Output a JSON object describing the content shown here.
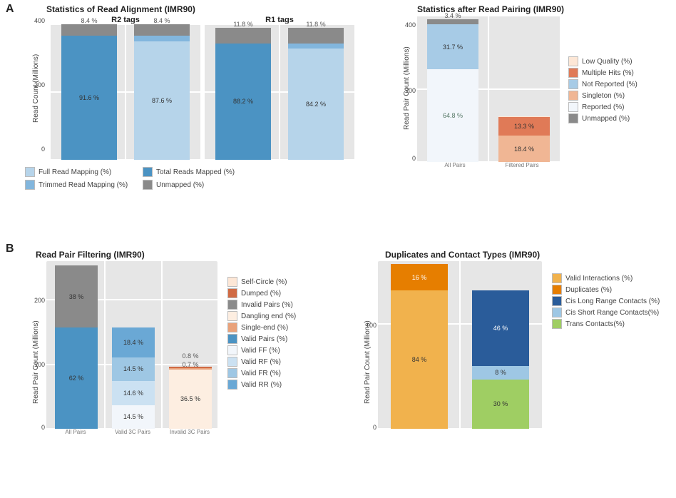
{
  "section_A_label": "A",
  "section_B_label": "B",
  "panelA1": {
    "title": "Statistics of Read Alignment  (IMR90)",
    "sub_left": "R2 tags",
    "sub_right": "R1 tags",
    "y_label": "Read Count (Millions)",
    "ymax": 400,
    "yticks": [
      0,
      200,
      400
    ],
    "bg": "#e6e6e6",
    "grid": "#ffffff",
    "left_bars": [
      {
        "total": 400,
        "segments": [
          {
            "label": "91.6 %",
            "value": 366,
            "color": "#4b93c3"
          },
          {
            "label": "8.4 %",
            "value": 34,
            "color": "#8a8a8a",
            "label_pos": "top"
          }
        ]
      },
      {
        "total": 400,
        "segments": [
          {
            "label": "87.6 %",
            "value": 350,
            "color": "#b6d4ea"
          },
          {
            "label": "4 %",
            "value": 16,
            "color": "#82b6dd",
            "label_pos": "top"
          },
          {
            "label": "8.4 %",
            "value": 34,
            "color": "#8a8a8a",
            "label_pos": "top"
          }
        ]
      }
    ],
    "right_bars": [
      {
        "total": 390,
        "segments": [
          {
            "label": "88.2 %",
            "value": 344,
            "color": "#4b93c3"
          },
          {
            "label": "11.8 %",
            "value": 46,
            "color": "#8a8a8a",
            "label_pos": "top"
          }
        ]
      },
      {
        "total": 390,
        "segments": [
          {
            "label": "84.2 %",
            "value": 328,
            "color": "#b6d4ea"
          },
          {
            "label": "4 %",
            "value": 16,
            "color": "#82b6dd",
            "label_pos": "top"
          },
          {
            "label": "11.8 %",
            "value": 46,
            "color": "#8a8a8a",
            "label_pos": "top"
          }
        ]
      }
    ],
    "legend": [
      {
        "label": "Full Read Mapping (%)",
        "color": "#b6d4ea"
      },
      {
        "label": "Total Reads Mapped (%)",
        "color": "#4b93c3"
      },
      {
        "label": "Trimmed Read Mapping (%)",
        "color": "#82b6dd"
      },
      {
        "label": "Unmapped (%)",
        "color": "#8a8a8a"
      }
    ]
  },
  "panelA2": {
    "title": "Statistics after Read Pairing (IMR90)",
    "y_label": "Read Pair Count (Millions)",
    "ymax": 400,
    "yticks": [
      0,
      200,
      400
    ],
    "bg": "#e6e6e6",
    "x_categories": [
      "All Pairs",
      "Filtered Pairs"
    ],
    "bars": [
      {
        "total": 390,
        "segments": [
          {
            "label": "64.8 %",
            "value": 253,
            "color": "#f2f6fb",
            "text": "#576"
          },
          {
            "label": "31.7 %",
            "value": 124,
            "color": "#a7cbe6"
          },
          {
            "label": "3.4 %",
            "value": 13,
            "color": "#8a8a8a",
            "label_pos": "top"
          }
        ]
      },
      {
        "total": 125,
        "segments": [
          {
            "label": "18.4 %",
            "value": 72,
            "color": "#f0b694"
          },
          {
            "label": "13.3 %",
            "value": 52,
            "color": "#e07a57"
          },
          {
            "label": "",
            "value": 1,
            "color": "#fde7d6"
          }
        ]
      }
    ],
    "legend": [
      {
        "label": "Low Quality (%)",
        "color": "#fde7d6"
      },
      {
        "label": "Multiple Hits (%)",
        "color": "#e07a57"
      },
      {
        "label": "Not Reported (%)",
        "color": "#a7cbe6"
      },
      {
        "label": "Singleton (%)",
        "color": "#f0b694"
      },
      {
        "label": "Reported (%)",
        "color": "#f2f6fb"
      },
      {
        "label": "Unmapped (%)",
        "color": "#8a8a8a"
      }
    ]
  },
  "panelB1": {
    "title": "Read Pair Filtering (IMR90)",
    "y_label": "Read Pair Count (Millions)",
    "ymax": 260,
    "yticks": [
      0,
      100,
      200
    ],
    "bg": "#e6e6e6",
    "x_categories": [
      "All Pairs",
      "Valid 3C Pairs",
      "Invalid 3C Pairs"
    ],
    "bars": [
      {
        "total": 253,
        "segments": [
          {
            "label": "62 %",
            "value": 157,
            "color": "#4b93c3"
          },
          {
            "label": "38 %",
            "value": 96,
            "color": "#8a8a8a"
          }
        ]
      },
      {
        "total": 157,
        "segments": [
          {
            "label": "14.5 %",
            "value": 37,
            "color": "#f2f6fb"
          },
          {
            "label": "14.6 %",
            "value": 37,
            "color": "#cbe1f2"
          },
          {
            "label": "14.5 %",
            "value": 37,
            "color": "#9ec7e4"
          },
          {
            "label": "18.4 %",
            "value": 46,
            "color": "#6aa8d5"
          }
        ]
      },
      {
        "total": 96,
        "segments": [
          {
            "label": "36.5 %",
            "value": 92,
            "color": "#fdeee1"
          },
          {
            "label": "0.7 %",
            "value": 2,
            "color": "#e9a27b",
            "label_pos": "top"
          },
          {
            "label": "0.8 %",
            "value": 2,
            "color": "#d06a43",
            "label_pos": "top2"
          }
        ]
      }
    ],
    "legend": [
      {
        "label": "Self-Circle (%)",
        "color": "#fde7d6"
      },
      {
        "label": "Dumped (%)",
        "color": "#d06a43"
      },
      {
        "label": "Invalid Pairs (%)",
        "color": "#8a8a8a"
      },
      {
        "label": "Dangling end (%)",
        "color": "#fdeee1"
      },
      {
        "label": "Single-end (%)",
        "color": "#e9a27b"
      },
      {
        "label": "Valid Pairs (%)",
        "color": "#4b93c3"
      },
      {
        "label": "Valid FF (%)",
        "color": "#f2f6fb"
      },
      {
        "label": "Valid RF (%)",
        "color": "#cbe1f2"
      },
      {
        "label": "Valid FR (%)",
        "color": "#9ec7e4"
      },
      {
        "label": "Valid RR (%)",
        "color": "#6aa8d5"
      }
    ]
  },
  "panelB2": {
    "title": "Duplicates and Contact Types (IMR90)",
    "y_label": "Read Pair Count (Millions)",
    "ymax": 160,
    "yticks": [
      0,
      100
    ],
    "bg": "#e6e6e6",
    "x_categories": [
      "",
      ""
    ],
    "bars": [
      {
        "total": 157,
        "segments": [
          {
            "label": "84 %",
            "value": 132,
            "color": "#f1b24d"
          },
          {
            "label": "16 %",
            "value": 25,
            "color": "#e67e00",
            "text": "#fff"
          }
        ]
      },
      {
        "total": 132,
        "segments": [
          {
            "label": "30 %",
            "value": 47,
            "color": "#9fce63"
          },
          {
            "label": "8 %",
            "value": 13,
            "color": "#9ec7e4"
          },
          {
            "label": "46 %",
            "value": 72,
            "color": "#2a5c9a",
            "text": "#ffffff"
          }
        ]
      }
    ],
    "legend": [
      {
        "label": "Valid Interactions (%)",
        "color": "#f1b24d"
      },
      {
        "label": "Duplicates (%)",
        "color": "#e67e00"
      },
      {
        "label": "Cis Long Range Contacts (%)",
        "color": "#2a5c9a"
      },
      {
        "label": "Cis Short Range Contacts(%)",
        "color": "#9ec7e4"
      },
      {
        "label": "Trans Contacts(%)",
        "color": "#9fce63"
      }
    ]
  }
}
